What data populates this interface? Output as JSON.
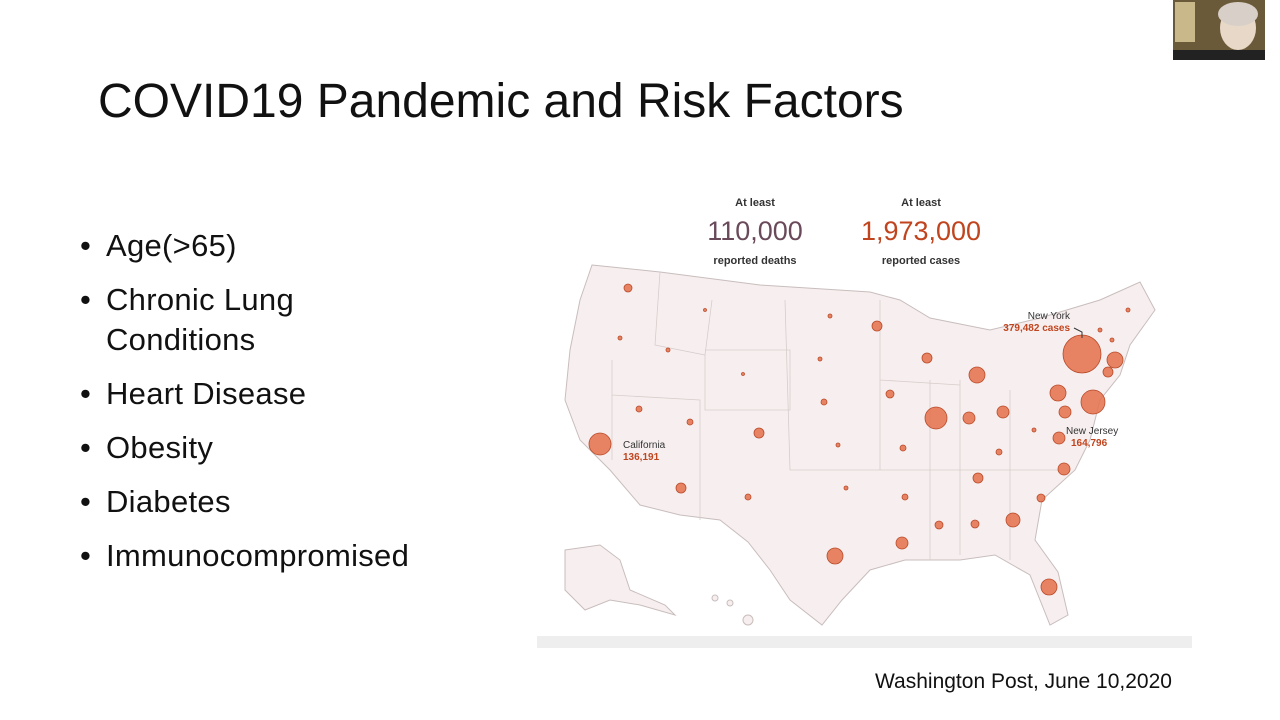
{
  "title": "COVID19 Pandemic and Risk Factors",
  "bullets": [
    "Age(>65)",
    "Chronic Lung Conditions",
    "Heart Disease",
    "Obesity",
    "Diabetes",
    "Immunocompromised"
  ],
  "map": {
    "deaths": {
      "prefix": "At least",
      "value": "110,000",
      "label": "reported deaths"
    },
    "cases": {
      "prefix": "At least",
      "value": "1,973,000",
      "label": "reported cases"
    },
    "callouts": [
      {
        "name": "New York",
        "value": "379,482 cases"
      },
      {
        "name": "California",
        "value": "136,191"
      },
      {
        "name": "New Jersey",
        "value": "164,796"
      }
    ]
  },
  "source": "Washington Post, June 10,2020"
}
